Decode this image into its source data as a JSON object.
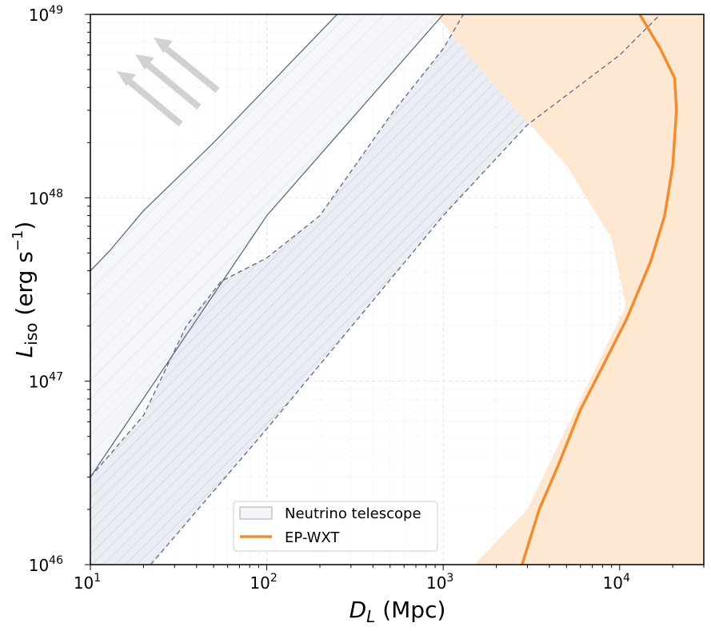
{
  "chart_data": {
    "type": "area",
    "xlabel": "D_L (Mpc)",
    "ylabel": "L_iso (erg s^-1)",
    "x_scale": "log",
    "y_scale": "log",
    "xlim": [
      10,
      30000
    ],
    "ylim": [
      1e+46,
      1e+49
    ],
    "x_ticks": [
      {
        "value": 10,
        "label": "10",
        "exp": "1"
      },
      {
        "value": 100,
        "label": "10",
        "exp": "2"
      },
      {
        "value": 1000,
        "label": "10",
        "exp": "3"
      },
      {
        "value": 10000,
        "label": "10",
        "exp": "4"
      }
    ],
    "y_ticks": [
      {
        "value": 1e+46,
        "label": "10",
        "exp": "46"
      },
      {
        "value": 1e+47,
        "label": "10",
        "exp": "47"
      },
      {
        "value": 1e+48,
        "label": "10",
        "exp": "48"
      },
      {
        "value": 1e+49,
        "label": "10",
        "exp": "49"
      }
    ],
    "grid": true,
    "legend_position": "lower-center",
    "series": [
      {
        "name": "Neutrino telescope",
        "kind": "band",
        "color": "#f3f5f8",
        "edge_color": "#5b6b84",
        "upper": [
          [
            10,
            4e+47
          ],
          [
            13,
            5.2e+47
          ],
          [
            20,
            8.5e+47
          ],
          [
            50,
            2e+48
          ],
          [
            100,
            4e+48
          ],
          [
            250,
            1e+49
          ]
        ],
        "lower": [
          [
            10,
            3e+46
          ],
          [
            100,
            8e+47
          ],
          [
            1000,
            1e+49
          ]
        ]
      },
      {
        "name": "",
        "kind": "band",
        "color": "#e8ebf2",
        "edge_color": "#5b6b84",
        "dashed": true,
        "upper": [
          [
            10,
            3e+46
          ],
          [
            20,
            6.5e+46
          ],
          [
            35,
            2e+47
          ],
          [
            55,
            3.5e+47
          ],
          [
            100,
            4.7e+47
          ],
          [
            200,
            8e+47
          ],
          [
            500,
            2.8e+48
          ],
          [
            1000,
            6.5e+48
          ],
          [
            1300,
            1e+49
          ]
        ],
        "lower": [
          [
            22,
            1e+46
          ],
          [
            100,
            5.5e+46
          ],
          [
            1000,
            8e+47
          ],
          [
            3000,
            2.5e+48
          ],
          [
            10000,
            6e+48
          ],
          [
            17000,
            1e+49
          ]
        ]
      },
      {
        "name": "",
        "kind": "band",
        "color": "#ffe8d2",
        "upper": [
          [
            900,
            1e+49
          ],
          [
            2000,
            4e+48
          ],
          [
            5000,
            1.5e+48
          ],
          [
            9000,
            6e+47
          ],
          [
            11500,
            2e+47
          ],
          [
            14000,
            1.2e+47
          ],
          [
            18000,
            7e+46
          ],
          [
            25000,
            3.5e+46
          ],
          [
            30000,
            3e+46
          ]
        ],
        "lower": [
          [
            1500,
            1e+46
          ],
          [
            3000,
            2e+46
          ],
          [
            6000,
            8e+46
          ],
          [
            10000,
            2.2e+47
          ],
          [
            15000,
            5e+47
          ],
          [
            20000,
            1e+48
          ],
          [
            27000,
            2e+48
          ],
          [
            30000,
            2.5e+48
          ]
        ]
      },
      {
        "name": "EP-WXT",
        "kind": "line",
        "color": "#f28c30",
        "points": [
          [
            2800,
            1e+46
          ],
          [
            3500,
            2e+46
          ],
          [
            4500,
            3.5e+46
          ],
          [
            6000,
            7e+46
          ],
          [
            8000,
            1.2e+47
          ],
          [
            11000,
            2.2e+47
          ],
          [
            15000,
            4.5e+47
          ],
          [
            18000,
            8e+47
          ],
          [
            20000,
            1.5e+48
          ],
          [
            21000,
            3e+48
          ],
          [
            20500,
            4.5e+48
          ],
          [
            17000,
            6.5e+48
          ],
          [
            13000,
            1e+49
          ]
        ]
      }
    ]
  }
}
